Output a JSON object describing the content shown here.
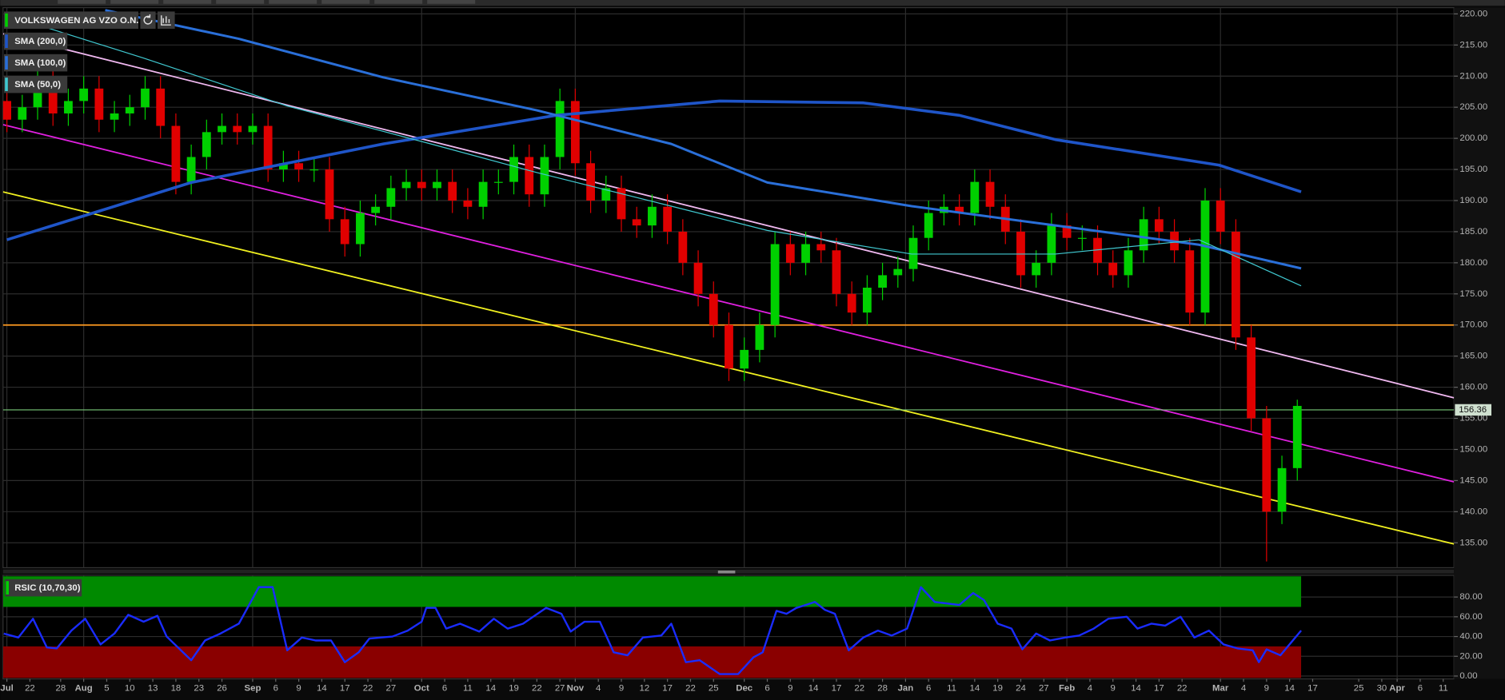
{
  "chart_data": {
    "type": "candlestick",
    "title": "VOLKSWAGEN AG VZO O.N.",
    "open": [
      206,
      203,
      205,
      210,
      204,
      206,
      208,
      203,
      204,
      205,
      208,
      202,
      193,
      197,
      201,
      202,
      201,
      202,
      195,
      196,
      195,
      195,
      187,
      183,
      188,
      189,
      192,
      193,
      192,
      193,
      190,
      189,
      193,
      193,
      197,
      191,
      197,
      206,
      196,
      190,
      192,
      187,
      186,
      189,
      185,
      180,
      175,
      170,
      163,
      166,
      170,
      183,
      180,
      183,
      182,
      175,
      172,
      176,
      178,
      179,
      184,
      188,
      189,
      188,
      193,
      189,
      185,
      178,
      180,
      186,
      184,
      184,
      180,
      178,
      182,
      187,
      185,
      182,
      172,
      190,
      185,
      168,
      155,
      140,
      147
    ],
    "high": [
      208,
      207,
      212,
      212,
      208,
      210,
      210,
      206,
      207,
      210,
      210,
      204,
      199,
      203,
      204,
      204,
      204,
      204,
      198,
      198,
      197,
      197,
      189,
      190,
      191,
      194,
      195,
      195,
      195,
      195,
      192,
      195,
      195,
      199,
      199,
      199,
      208,
      208,
      198,
      194,
      194,
      189,
      191,
      191,
      187,
      182,
      177,
      172,
      168,
      172,
      185,
      185,
      185,
      185,
      184,
      177,
      178,
      180,
      181,
      186,
      190,
      191,
      191,
      195,
      195,
      191,
      187,
      182,
      188,
      188,
      186,
      186,
      182,
      184,
      189,
      189,
      187,
      184,
      192,
      192,
      187,
      170,
      157,
      149,
      158
    ],
    "low": [
      201,
      201,
      203,
      202,
      202,
      204,
      201,
      201,
      202,
      203,
      200,
      191,
      191,
      195,
      199,
      199,
      199,
      193,
      193,
      193,
      193,
      185,
      181,
      181,
      186,
      187,
      190,
      190,
      190,
      188,
      187,
      187,
      191,
      191,
      189,
      189,
      195,
      194,
      188,
      188,
      185,
      184,
      184,
      183,
      178,
      173,
      168,
      161,
      161,
      164,
      168,
      178,
      178,
      180,
      173,
      170,
      170,
      174,
      176,
      177,
      182,
      186,
      186,
      186,
      187,
      183,
      176,
      176,
      178,
      182,
      182,
      178,
      176,
      176,
      180,
      183,
      180,
      170,
      170,
      183,
      166,
      153,
      132,
      138,
      145
    ],
    "close": [
      203,
      205,
      210,
      204,
      206,
      208,
      203,
      204,
      205,
      208,
      202,
      193,
      197,
      201,
      202,
      201,
      202,
      195,
      196,
      195,
      195,
      187,
      183,
      188,
      189,
      192,
      193,
      192,
      193,
      190,
      189,
      193,
      193,
      197,
      191,
      197,
      206,
      196,
      190,
      192,
      187,
      186,
      189,
      185,
      180,
      175,
      170,
      163,
      166,
      170,
      183,
      180,
      183,
      182,
      175,
      172,
      176,
      178,
      179,
      184,
      188,
      189,
      188,
      193,
      189,
      185,
      178,
      180,
      186,
      184,
      184,
      180,
      178,
      182,
      187,
      185,
      182,
      172,
      190,
      185,
      168,
      155,
      140,
      147,
      157
    ],
    "up_color": "#00d000",
    "down_color": "#e00000",
    "series": [
      {
        "name": "SMA (200,0)",
        "color": "#1f55c8",
        "width": 3,
        "x": [
          0,
          12,
          24.5,
          35.75,
          46.4,
          55.75,
          62,
          68.25,
          78.9,
          84.25
        ],
        "values": [
          183.7,
          192.9,
          199.1,
          203.7,
          206,
          205.7,
          203.7,
          199.8,
          195.7,
          191.4
        ]
      },
      {
        "name": "SMA (100,0)",
        "color": "#2a6fd8",
        "width": 2.5,
        "x": [
          6.4,
          15.1,
          24.5,
          34.5,
          43.25,
          49.5,
          58.9,
          68.25,
          77.6,
          84.25
        ],
        "values": [
          220.6,
          216,
          209.8,
          204.5,
          199.1,
          192.9,
          189.1,
          186,
          182.9,
          179.1
        ]
      },
      {
        "name": "SMA (50,0)",
        "color": "#40c8d0",
        "width": 1,
        "x": [
          0,
          8.9,
          18.25,
          27.6,
          34.5,
          43.25,
          49.5,
          58.9,
          68.25,
          77.6,
          84.25
        ],
        "values": [
          219.8,
          212.9,
          205.2,
          199.1,
          194.5,
          189.1,
          185.2,
          181.4,
          181.4,
          183.7,
          176.3
        ]
      }
    ],
    "trendlines": [
      {
        "color": "#f0b8f0",
        "x": [
          -0.25,
          94.2
        ],
        "values": [
          216.8,
          158.3
        ]
      },
      {
        "color": "#e020e0",
        "x": [
          -0.25,
          94.2
        ],
        "values": [
          202.2,
          144.8
        ]
      },
      {
        "color": "#f0f020",
        "x": [
          -0.25,
          94.2
        ],
        "values": [
          191.4,
          134.8
        ]
      }
    ],
    "hlines": [
      {
        "value": 170,
        "color": "#ff9a20"
      }
    ],
    "last_price": 156.36,
    "last_color": "#78c878",
    "xlim": [
      -0.25,
      94.2
    ],
    "ylim": [
      131,
      221
    ],
    "xticks": [
      {
        "value": 0,
        "label": "Jul"
      },
      {
        "value": 1.5,
        "label": "22"
      },
      {
        "value": 3.5,
        "label": "28"
      },
      {
        "value": 5,
        "label": "Aug"
      },
      {
        "value": 6.5,
        "label": "5"
      },
      {
        "value": 8,
        "label": "10"
      },
      {
        "value": 9.5,
        "label": "13"
      },
      {
        "value": 11,
        "label": "18"
      },
      {
        "value": 12.5,
        "label": "23"
      },
      {
        "value": 14,
        "label": "26"
      },
      {
        "value": 16,
        "label": "Sep"
      },
      {
        "value": 17.5,
        "label": "6"
      },
      {
        "value": 19,
        "label": "9"
      },
      {
        "value": 20.5,
        "label": "14"
      },
      {
        "value": 22,
        "label": "17"
      },
      {
        "value": 23.5,
        "label": "22"
      },
      {
        "value": 25,
        "label": "27"
      },
      {
        "value": 27,
        "label": "Oct"
      },
      {
        "value": 28.5,
        "label": "6"
      },
      {
        "value": 30,
        "label": "11"
      },
      {
        "value": 31.5,
        "label": "14"
      },
      {
        "value": 33,
        "label": "19"
      },
      {
        "value": 34.5,
        "label": "22"
      },
      {
        "value": 36,
        "label": "27"
      },
      {
        "value": 37,
        "label": "Nov"
      },
      {
        "value": 38.5,
        "label": "4"
      },
      {
        "value": 40,
        "label": "9"
      },
      {
        "value": 41.5,
        "label": "12"
      },
      {
        "value": 43,
        "label": "17"
      },
      {
        "value": 44.5,
        "label": "22"
      },
      {
        "value": 46,
        "label": "25"
      },
      {
        "value": 48,
        "label": "Dec"
      },
      {
        "value": 49.5,
        "label": "6"
      },
      {
        "value": 51,
        "label": "9"
      },
      {
        "value": 52.5,
        "label": "14"
      },
      {
        "value": 54,
        "label": "17"
      },
      {
        "value": 55.5,
        "label": "22"
      },
      {
        "value": 57,
        "label": "28"
      },
      {
        "value": 58.5,
        "label": "Jan"
      },
      {
        "value": 60,
        "label": "6"
      },
      {
        "value": 61.5,
        "label": "11"
      },
      {
        "value": 63,
        "label": "14"
      },
      {
        "value": 64.5,
        "label": "19"
      },
      {
        "value": 66,
        "label": "24"
      },
      {
        "value": 67.5,
        "label": "27"
      },
      {
        "value": 69,
        "label": "Feb"
      },
      {
        "value": 70.5,
        "label": "4"
      },
      {
        "value": 72,
        "label": "9"
      },
      {
        "value": 73.5,
        "label": "14"
      },
      {
        "value": 75,
        "label": "17"
      },
      {
        "value": 76.5,
        "label": "22"
      },
      {
        "value": 79,
        "label": "Mar"
      },
      {
        "value": 80.5,
        "label": "4"
      },
      {
        "value": 82,
        "label": "9"
      },
      {
        "value": 83.5,
        "label": "14"
      },
      {
        "value": 85,
        "label": "17"
      },
      {
        "value": 88,
        "label": "25"
      },
      {
        "value": 89.5,
        "label": "30"
      },
      {
        "value": 90.5,
        "label": "Apr"
      },
      {
        "value": 92,
        "label": "6"
      },
      {
        "value": 93.5,
        "label": "11"
      }
    ],
    "yticks": [
      {
        "value": 135,
        "label": "135.00"
      },
      {
        "value": 140,
        "label": "140.00"
      },
      {
        "value": 145,
        "label": "145.00"
      },
      {
        "value": 150,
        "label": "150.00"
      },
      {
        "value": 155,
        "label": "155.00"
      },
      {
        "value": 160,
        "label": "160.00"
      },
      {
        "value": 165,
        "label": "165.00"
      },
      {
        "value": 170,
        "label": "170.00"
      },
      {
        "value": 175,
        "label": "175.00"
      },
      {
        "value": 180,
        "label": "180.00"
      },
      {
        "value": 185,
        "label": "185.00"
      },
      {
        "value": 190,
        "label": "190.00"
      },
      {
        "value": 195,
        "label": "195.00"
      },
      {
        "value": 200,
        "label": "200.00"
      },
      {
        "value": 205,
        "label": "205.00"
      },
      {
        "value": 210,
        "label": "210.00"
      },
      {
        "value": 215,
        "label": "215.00"
      },
      {
        "value": 220,
        "label": "220.00"
      }
    ],
    "grid": true,
    "rsi": {
      "type": "line",
      "title": "RSIC (10,70,30)",
      "color": "#1a2cff",
      "x": [
        -0.2,
        0.75,
        1.7,
        2.6,
        3.25,
        4.2,
        5.1,
        6.1,
        7,
        7.9,
        8.9,
        9.8,
        10.4,
        12,
        12.9,
        13.9,
        15.1,
        16.4,
        17.3,
        18.25,
        19.2,
        20.1,
        21.1,
        22,
        22.9,
        23.6,
        25.1,
        26.1,
        27,
        27.3,
        27.9,
        28.6,
        29.5,
        30.75,
        31.7,
        32.6,
        33.6,
        35.1,
        36.1,
        36.7,
        37.6,
        38.6,
        39.5,
        40.4,
        41.4,
        42.6,
        43.25,
        44.2,
        45.1,
        46.4,
        47.6,
        48.6,
        49.2,
        50.1,
        50.75,
        51.4,
        52.6,
        53.25,
        53.9,
        54.8,
        55.75,
        56.7,
        57.6,
        58.6,
        59.5,
        60.4,
        62,
        62.9,
        63.6,
        64.5,
        65.4,
        66.1,
        67,
        67.9,
        68.9,
        69.8,
        70.75,
        71.7,
        72.9,
        73.6,
        74.5,
        75.4,
        76.4,
        77.3,
        78.25,
        79.2,
        80.1,
        81.1,
        81.5,
        82,
        82.9,
        84.25
      ],
      "values": [
        43,
        39,
        58,
        29,
        28,
        46,
        58,
        32,
        43,
        62,
        55,
        61,
        40,
        16,
        36,
        43,
        53,
        90,
        90,
        26,
        39,
        36,
        36,
        14,
        24,
        38,
        40,
        46,
        55,
        69,
        69,
        48,
        53,
        45,
        58,
        48,
        53,
        69,
        63,
        45,
        55,
        55,
        24,
        21,
        39,
        41,
        53,
        14,
        16,
        2,
        2,
        19,
        24,
        66,
        63,
        69,
        75,
        67,
        63,
        26,
        39,
        46,
        41,
        48,
        90,
        75,
        72,
        84,
        77,
        53,
        48,
        27,
        43,
        36,
        39,
        41,
        48,
        58,
        60,
        48,
        53,
        51,
        60,
        39,
        46,
        32,
        28,
        26,
        14,
        27,
        21,
        46
      ],
      "ylim": [
        0,
        100
      ],
      "yticks": [
        {
          "value": 0,
          "label": "0.00"
        },
        {
          "value": 20,
          "label": "20.00"
        },
        {
          "value": 40,
          "label": "40.00"
        },
        {
          "value": 60,
          "label": "60.00"
        },
        {
          "value": 80,
          "label": "80.00"
        }
      ],
      "bands": [
        {
          "from": 70,
          "to": 100,
          "color": "#008a00"
        },
        {
          "from": 0,
          "to": 30,
          "color": "#8a0000"
        }
      ],
      "band_end": 84.25
    }
  }
}
